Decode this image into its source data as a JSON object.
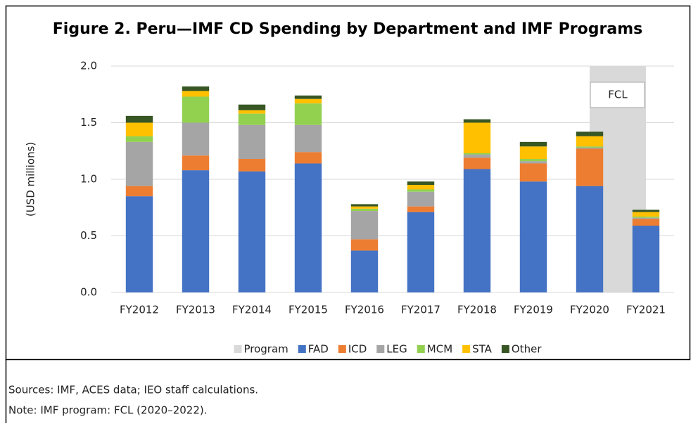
{
  "chart_data": {
    "type": "stacked-bar",
    "title": "Figure 2. Peru—IMF CD Spending by Department and IMF Programs",
    "y_label": "(USD millions)",
    "annotation": "FCL",
    "sources": "Sources: IMF, ACES data; IEO staff calculations.",
    "note": "Note: IMF program: FCL (2020–2022).",
    "categories": [
      "FY2012",
      "FY2013",
      "FY2014",
      "FY2015",
      "FY2016",
      "FY2017",
      "FY2018",
      "FY2019",
      "FY2020",
      "FY2021"
    ],
    "ylim": [
      0,
      2.0
    ],
    "yticks": [
      {
        "value": 0,
        "label": "0.0"
      },
      {
        "value": 0.5,
        "label": "0.5"
      },
      {
        "value": 1,
        "label": "1.0"
      },
      {
        "value": 1.5,
        "label": "1.5"
      },
      {
        "value": 2,
        "label": "2.0"
      }
    ],
    "grid": true,
    "legend": "bottom",
    "series": [
      {
        "name": "Program",
        "color": "#d9d9d9",
        "kind": "band",
        "values": [
          null,
          null,
          null,
          null,
          null,
          null,
          null,
          null,
          2.0,
          2.0
        ]
      },
      {
        "name": "FAD",
        "color": "#4472c4",
        "values": [
          0.85,
          1.08,
          1.07,
          1.14,
          0.37,
          0.71,
          1.09,
          0.98,
          0.94,
          0.59
        ]
      },
      {
        "name": "ICD",
        "color": "#ed7d31",
        "values": [
          0.09,
          0.13,
          0.11,
          0.1,
          0.1,
          0.05,
          0.1,
          0.16,
          0.33,
          0.06
        ]
      },
      {
        "name": "LEG",
        "color": "#a5a5a5",
        "values": [
          0.39,
          0.29,
          0.3,
          0.24,
          0.25,
          0.13,
          0.03,
          0.02,
          0.01,
          0.01
        ]
      },
      {
        "name": "MCM",
        "color": "#92d050",
        "values": [
          0.05,
          0.23,
          0.1,
          0.19,
          0.02,
          0.02,
          0.01,
          0.02,
          0.01,
          0.01
        ]
      },
      {
        "name": "STA",
        "color": "#ffc000",
        "values": [
          0.12,
          0.05,
          0.03,
          0.04,
          0.02,
          0.04,
          0.27,
          0.11,
          0.09,
          0.04
        ]
      },
      {
        "name": "Other",
        "color": "#375623",
        "values": [
          0.06,
          0.04,
          0.05,
          0.03,
          0.02,
          0.03,
          0.03,
          0.04,
          0.04,
          0.02
        ]
      }
    ]
  }
}
